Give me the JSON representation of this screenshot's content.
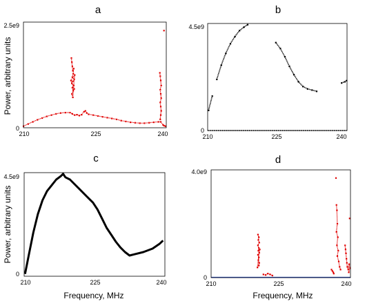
{
  "chart_data": [
    {
      "panel": "a",
      "type": "scatter",
      "title": "a",
      "ylabel": "Power, arbitrary units",
      "xlabel": "",
      "xlim": [
        210,
        240.7
      ],
      "ylim": [
        0,
        2500000000.0
      ],
      "x_ticks": [
        {
          "value": 210,
          "label": "210"
        },
        {
          "value": 225,
          "label": "225"
        },
        {
          "value": 240,
          "label": "240"
        }
      ],
      "y_ticks": [
        {
          "value": 0,
          "label": "0"
        },
        {
          "value": 2500000000,
          "label": "2.5e9"
        }
      ],
      "color": "#e00000",
      "series": [
        {
          "points": [
            [
              210.0,
              40000000.0
            ],
            [
              211.0,
              90000000.0
            ],
            [
              212.0,
              140000000.0
            ],
            [
              213.0,
              190000000.0
            ],
            [
              214.0,
              230000000.0
            ],
            [
              215.0,
              270000000.0
            ],
            [
              216.0,
              300000000.0
            ],
            [
              217.0,
              330000000.0
            ],
            [
              218.0,
              350000000.0
            ],
            [
              219.0,
              360000000.0
            ],
            [
              220.0,
              360000000.0
            ],
            [
              220.5,
              330000000.0
            ],
            [
              221.0,
              300000000.0
            ],
            [
              221.5,
              310000000.0
            ],
            [
              222.0,
              290000000.0
            ],
            [
              222.5,
              310000000.0
            ],
            [
              223.0,
              380000000.0
            ],
            [
              223.3,
              400000000.0
            ],
            [
              223.6,
              350000000.0
            ],
            [
              224.0,
              320000000.0
            ],
            [
              225.0,
              300000000.0
            ],
            [
              226.0,
              280000000.0
            ],
            [
              227.0,
              260000000.0
            ],
            [
              228.0,
              240000000.0
            ],
            [
              229.0,
              220000000.0
            ],
            [
              230.0,
              200000000.0
            ],
            [
              231.0,
              170000000.0
            ],
            [
              232.0,
              150000000.0
            ],
            [
              233.0,
              130000000.0
            ],
            [
              234.0,
              120000000.0
            ],
            [
              235.0,
              110000000.0
            ],
            [
              236.0,
              110000000.0
            ],
            [
              237.0,
              120000000.0
            ],
            [
              238.0,
              130000000.0
            ],
            [
              239.0,
              140000000.0
            ],
            [
              239.5,
              140000000.0
            ],
            [
              240.0,
              70000000.0
            ],
            [
              240.2,
              50000000.0
            ],
            [
              240.5,
              40000000.0
            ],
            [
              220.3,
              1650000000.0
            ],
            [
              220.4,
              1550000000.0
            ],
            [
              220.5,
              1450000000.0
            ],
            [
              220.6,
              1350000000.0
            ],
            [
              220.8,
              1400000000.0
            ],
            [
              220.7,
              1280000000.0
            ],
            [
              220.5,
              1200000000.0
            ],
            [
              220.9,
              1150000000.0
            ],
            [
              220.6,
              1100000000.0
            ],
            [
              220.4,
              1050000000.0
            ],
            [
              220.8,
              1000000000.0
            ],
            [
              220.5,
              950000000.0
            ],
            [
              220.7,
              880000000.0
            ],
            [
              220.4,
              800000000.0
            ],
            [
              220.6,
              720000000.0
            ],
            [
              221.0,
              1250000000.0
            ],
            [
              220.2,
              1120000000.0
            ],
            [
              220.9,
              920000000.0
            ],
            [
              239.3,
              1300000000.0
            ],
            [
              239.4,
              1220000000.0
            ],
            [
              239.5,
              1120000000.0
            ],
            [
              239.6,
              1000000000.0
            ],
            [
              239.4,
              900000000.0
            ],
            [
              239.5,
              800000000.0
            ],
            [
              239.6,
              700000000.0
            ],
            [
              239.4,
              600000000.0
            ],
            [
              239.5,
              500000000.0
            ],
            [
              239.6,
              400000000.0
            ],
            [
              239.5,
              300000000.0
            ],
            [
              239.4,
              200000000.0
            ],
            [
              240.2,
              2300000000.0
            ]
          ]
        }
      ]
    },
    {
      "panel": "b",
      "type": "scatter",
      "title": "b",
      "ylabel": "",
      "xlabel": "",
      "xlim": [
        210,
        240.7
      ],
      "ylim": [
        0,
        4500000000.0
      ],
      "x_ticks": [
        {
          "value": 210,
          "label": "210"
        },
        {
          "value": 225,
          "label": "225"
        },
        {
          "value": 240,
          "label": "240"
        }
      ],
      "y_ticks": [
        {
          "value": 0,
          "label": "0"
        },
        {
          "value": 4500000000,
          "label": "4.5e9"
        }
      ],
      "color": "#000000",
      "series": [
        {
          "points": [
            [
              210.2,
              850000000.0
            ],
            [
              211.0,
              1450000000.0
            ],
            [
              212.0,
              2150000000.0
            ],
            [
              213.0,
              2750000000.0
            ],
            [
              214.0,
              3250000000.0
            ],
            [
              215.0,
              3650000000.0
            ],
            [
              216.0,
              3950000000.0
            ],
            [
              217.0,
              4200000000.0
            ],
            [
              218.0,
              4350000000.0
            ],
            [
              218.8,
              4450000000.0
            ],
            [
              225.0,
              3700000000.0
            ],
            [
              226.0,
              3450000000.0
            ],
            [
              227.0,
              3100000000.0
            ],
            [
              228.0,
              2700000000.0
            ],
            [
              229.0,
              2350000000.0
            ],
            [
              230.0,
              2050000000.0
            ],
            [
              231.0,
              1850000000.0
            ],
            [
              232.0,
              1750000000.0
            ],
            [
              233.0,
              1700000000.0
            ],
            [
              234.0,
              1650000000.0
            ],
            [
              239.5,
              2000000000.0
            ],
            [
              240.2,
              2050000000.0
            ],
            [
              240.6,
              2100000000.0
            ]
          ]
        },
        {
          "points": [
            [
              210.0,
              0.0
            ],
            [
              215.0,
              0.0
            ],
            [
              220.0,
              0.0
            ],
            [
              225.0,
              0.0
            ],
            [
              230.0,
              0.0
            ],
            [
              235.0,
              0.0
            ],
            [
              240.0,
              0.0
            ],
            [
              240.7,
              0.0
            ]
          ]
        }
      ]
    },
    {
      "panel": "c",
      "type": "line",
      "title": "c",
      "ylabel": "Power, arbitrary units",
      "xlabel": "Frequency, MHz",
      "xlim": [
        210,
        240.7
      ],
      "ylim": [
        0,
        4500000000.0
      ],
      "x_ticks": [
        {
          "value": 210,
          "label": "210"
        },
        {
          "value": 225,
          "label": "225"
        },
        {
          "value": 240,
          "label": "240"
        }
      ],
      "y_ticks": [
        {
          "value": 0,
          "label": "0"
        },
        {
          "value": 4500000000,
          "label": "4.5e9"
        }
      ],
      "color": "#000000",
      "series": [
        {
          "points": [
            [
              210.2,
              100000000.0
            ],
            [
              211.0,
              900000000.0
            ],
            [
              212.0,
              1900000000.0
            ],
            [
              213.0,
              2700000000.0
            ],
            [
              214.0,
              3300000000.0
            ],
            [
              215.0,
              3700000000.0
            ],
            [
              216.0,
              3950000000.0
            ],
            [
              217.0,
              4200000000.0
            ],
            [
              218.0,
              4350000000.0
            ],
            [
              218.5,
              4450000000.0
            ],
            [
              219.0,
              4300000000.0
            ],
            [
              220.0,
              4200000000.0
            ],
            [
              222.0,
              3800000000.0
            ],
            [
              224.0,
              3400000000.0
            ],
            [
              225.0,
              3200000000.0
            ],
            [
              226.0,
              2900000000.0
            ],
            [
              227.0,
              2500000000.0
            ],
            [
              228.0,
              2100000000.0
            ],
            [
              229.0,
              1800000000.0
            ],
            [
              230.0,
              1500000000.0
            ],
            [
              231.0,
              1250000000.0
            ],
            [
              232.0,
              1050000000.0
            ],
            [
              233.0,
              900000000.0
            ],
            [
              234.0,
              950000000.0
            ],
            [
              236.0,
              1050000000.0
            ],
            [
              238.0,
              1200000000.0
            ],
            [
              239.5,
              1400000000.0
            ],
            [
              240.3,
              1550000000.0
            ]
          ]
        }
      ]
    },
    {
      "panel": "d",
      "type": "scatter",
      "title": "d",
      "ylabel": "",
      "xlabel": "Frequency, MHz",
      "xlim": [
        210,
        240.7
      ],
      "ylim": [
        0,
        4000000000.0
      ],
      "x_ticks": [
        {
          "value": 210,
          "label": "210"
        },
        {
          "value": 225,
          "label": "225"
        },
        {
          "value": 240,
          "label": "240"
        }
      ],
      "y_ticks": [
        {
          "value": 0,
          "label": "0"
        },
        {
          "value": 4000000000,
          "label": "4.0e9"
        }
      ],
      "color": "#e00000",
      "baseline_color": "#3355cc",
      "series": [
        {
          "points": [
            [
              220.3,
              1600000000.0
            ],
            [
              220.5,
              1500000000.0
            ],
            [
              220.4,
              1400000000.0
            ],
            [
              220.6,
              1300000000.0
            ],
            [
              220.3,
              1200000000.0
            ],
            [
              220.5,
              1100000000.0
            ],
            [
              220.4,
              1000000000.0
            ],
            [
              220.6,
              920000000.0
            ],
            [
              220.3,
              850000000.0
            ],
            [
              220.5,
              750000000.0
            ],
            [
              220.4,
              650000000.0
            ],
            [
              220.6,
              550000000.0
            ],
            [
              220.5,
              450000000.0
            ],
            [
              220.2,
              380000000.0
            ],
            [
              220.7,
              1050000000.0
            ],
            [
              221.5,
              120000000.0
            ],
            [
              222.0,
              100000000.0
            ],
            [
              222.5,
              150000000.0
            ],
            [
              223.0,
              120000000.0
            ],
            [
              223.5,
              80000000.0
            ],
            [
              236.5,
              300000000.0
            ],
            [
              236.7,
              250000000.0
            ],
            [
              236.9,
              200000000.0
            ],
            [
              237.0,
              150000000.0
            ],
            [
              237.5,
              3700000000.0
            ],
            [
              237.6,
              2700000000.0
            ],
            [
              237.7,
              2500000000.0
            ],
            [
              237.8,
              2000000000.0
            ],
            [
              237.6,
              1700000000.0
            ],
            [
              237.9,
              1500000000.0
            ],
            [
              237.7,
              1200000000.0
            ],
            [
              238.0,
              1000000000.0
            ],
            [
              237.8,
              800000000.0
            ],
            [
              238.1,
              600000000.0
            ],
            [
              238.3,
              400000000.0
            ],
            [
              238.5,
              300000000.0
            ],
            [
              239.5,
              1200000000.0
            ],
            [
              239.6,
              1050000000.0
            ],
            [
              239.7,
              900000000.0
            ],
            [
              239.8,
              700000000.0
            ],
            [
              239.9,
              550000000.0
            ],
            [
              240.0,
              400000000.0
            ],
            [
              240.2,
              300000000.0
            ],
            [
              240.4,
              500000000.0
            ],
            [
              240.6,
              350000000.0
            ],
            [
              240.3,
              200000000.0
            ],
            [
              240.5,
              2200000000.0
            ]
          ]
        },
        {
          "points": [
            [
              210.0,
              10000000.0
            ],
            [
              215.0,
              10000000.0
            ],
            [
              220.0,
              10000000.0
            ],
            [
              225.0,
              10000000.0
            ],
            [
              230.0,
              10000000.0
            ],
            [
              235.0,
              10000000.0
            ],
            [
              240.0,
              10000000.0
            ],
            [
              240.7,
              10000000.0
            ]
          ]
        }
      ]
    }
  ]
}
